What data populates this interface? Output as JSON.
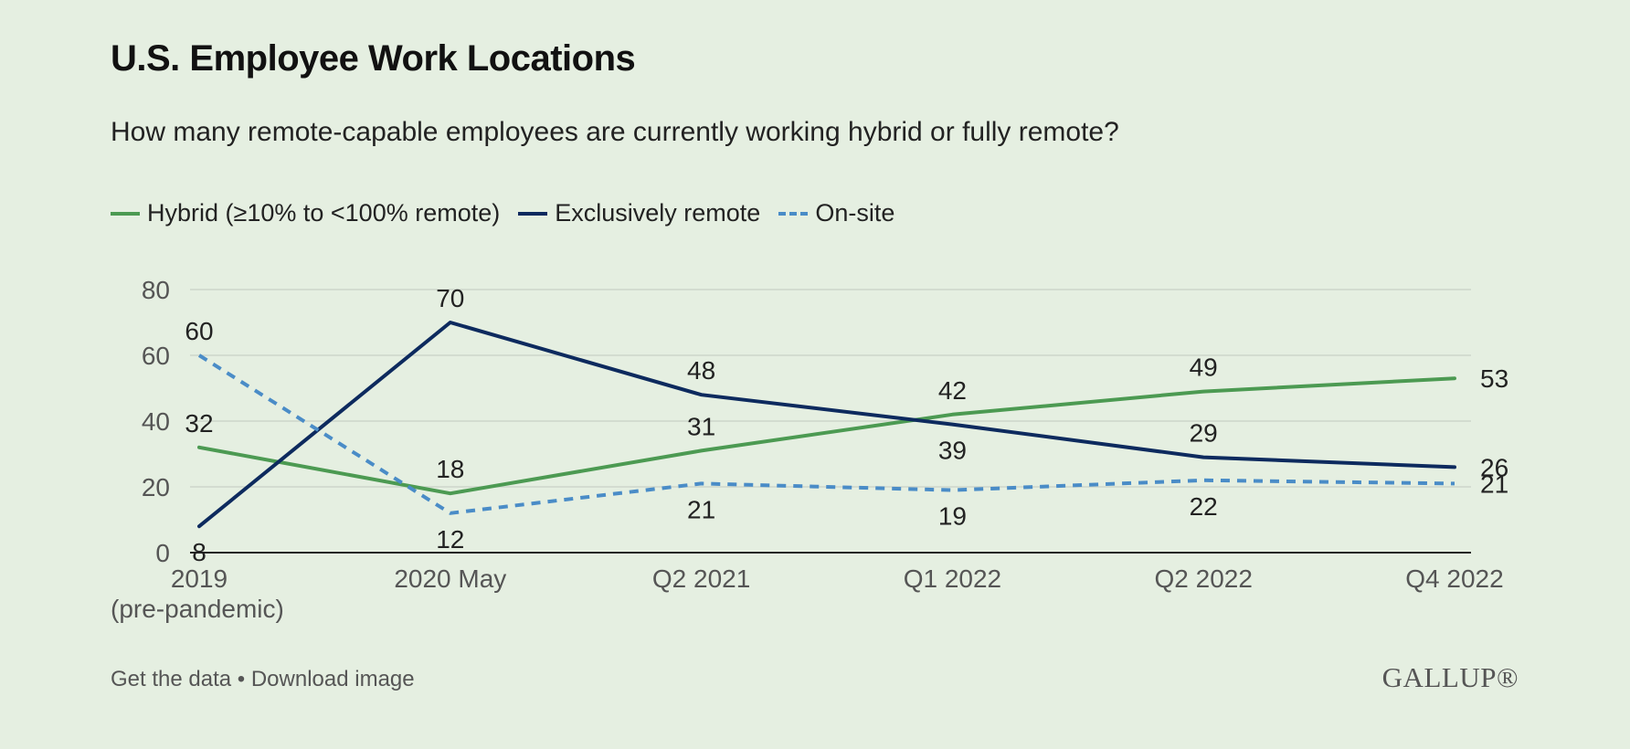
{
  "title": "U.S. Employee Work Locations",
  "subtitle": "How many remote-capable employees are currently working hybrid or fully remote?",
  "colors": {
    "background": "#e5efe1",
    "hybrid": "#4c9a52",
    "remote": "#0d2a5e",
    "onsite": "#4a8cc7",
    "grid": "#cdd6cb",
    "axis": "#222222",
    "tick_text": "#555555"
  },
  "footer": {
    "get_data": "Get the data",
    "separator": "•",
    "download": "Download image",
    "brand": "GALLUP®"
  },
  "chart_data": {
    "type": "line",
    "categories": [
      "2019",
      "2020 May",
      "Q2 2021",
      "Q1 2022",
      "Q2 2022",
      "Q4 2022"
    ],
    "category_sublabels": [
      "(pre-pandemic)",
      "",
      "",
      "",
      "",
      ""
    ],
    "series": [
      {
        "name": "Hybrid (≥10% to <100% remote)",
        "key": "hybrid",
        "values": [
          32,
          18,
          31,
          42,
          49,
          53
        ],
        "style": "solid"
      },
      {
        "name": "Exclusively remote",
        "key": "remote",
        "values": [
          8,
          70,
          48,
          39,
          29,
          26
        ],
        "style": "solid"
      },
      {
        "name": "On-site",
        "key": "onsite",
        "values": [
          60,
          12,
          21,
          19,
          22,
          21
        ],
        "style": "dashed"
      }
    ],
    "yticks": [
      0,
      20,
      40,
      60,
      80
    ],
    "ylim": [
      0,
      80
    ],
    "grid": true,
    "legend_position": "top-left",
    "xlabel": "",
    "ylabel": ""
  }
}
